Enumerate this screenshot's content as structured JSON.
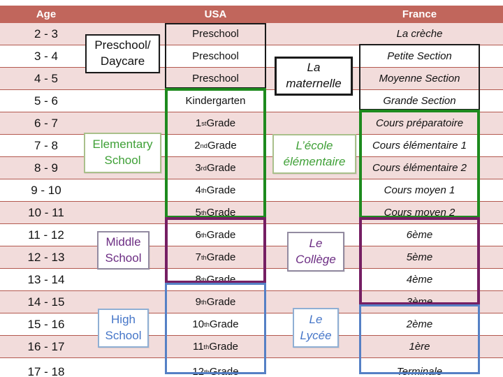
{
  "colors": {
    "header_bg": "#C1665C",
    "band_pink": "#F2DCDB",
    "row_line": "#B3594F",
    "box_black": "#1A1A1A",
    "box_green": "#1E8A1E",
    "box_purple": "#761F63",
    "box_blue": "#5580C5",
    "label_green_text": "#3FA037",
    "label_green_border": "#A9C08B",
    "label_purple_text": "#6C2D83",
    "label_purple_border": "#938BA1",
    "label_blue_text": "#4676C8",
    "label_blue_border": "#8FAFD4"
  },
  "header": {
    "age": "Age",
    "usa": "USA",
    "france": "France"
  },
  "rows": [
    {
      "age": "2 - 3",
      "usa": "Preschool",
      "france": "La crèche"
    },
    {
      "age": "3 - 4",
      "usa": "Preschool",
      "france": "Petite Section"
    },
    {
      "age": "4 - 5",
      "usa": "Preschool",
      "france": "Moyenne Section"
    },
    {
      "age": "5 - 6",
      "usa": "Kindergarten",
      "france": "Grande Section"
    },
    {
      "age": "6 - 7",
      "usa": "1st Grade",
      "france": "Cours préparatoire"
    },
    {
      "age": "7 - 8",
      "usa": "2nd Grade",
      "france": "Cours élémentaire 1"
    },
    {
      "age": "8 - 9",
      "usa": "3rd Grade",
      "france": "Cours élémentaire 2"
    },
    {
      "age": "9 - 10",
      "usa": "4th Grade",
      "france": "Cours moyen 1"
    },
    {
      "age": "10 - 11",
      "usa": "5th Grade",
      "france": "Cours moyen 2"
    },
    {
      "age": "11 - 12",
      "usa": "6th Grade",
      "france": "6ème"
    },
    {
      "age": "12 - 13",
      "usa": "7th Grade",
      "france": "5ème"
    },
    {
      "age": "13 - 14",
      "usa": "8th Grade",
      "france": "4ème"
    },
    {
      "age": "14 - 15",
      "usa": "9th Grade",
      "france": "3ème"
    },
    {
      "age": "15 - 16",
      "usa": "10th Grade",
      "france": "2ème"
    },
    {
      "age": "16 - 17",
      "usa": "11th Grade",
      "france": "1ère"
    },
    {
      "age": "17 - 18",
      "usa": "12th Grade",
      "france": "Terminale"
    }
  ],
  "overlays": {
    "preschool_daycare": {
      "lines": [
        "Preschool/",
        "Daycare"
      ]
    },
    "la_maternelle": {
      "lines": [
        "La",
        "maternelle"
      ]
    },
    "elementary_school": {
      "lines": [
        "Elementary",
        "School"
      ]
    },
    "ecole_elementaire": {
      "lines": [
        "L’école",
        "élémentaire"
      ]
    },
    "middle_school": {
      "lines": [
        "Middle",
        "School"
      ]
    },
    "le_college": {
      "lines": [
        "Le",
        "Collège"
      ]
    },
    "high_school": {
      "lines": [
        "High",
        "School"
      ]
    },
    "le_lycee": {
      "lines": [
        "Le",
        "Lycée"
      ]
    }
  }
}
